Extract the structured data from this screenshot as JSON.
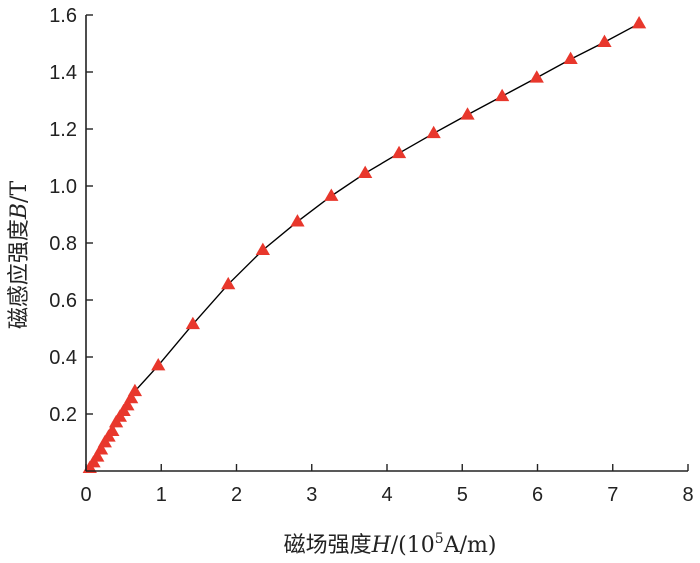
{
  "chart_data": {
    "type": "line",
    "title": "",
    "xlabel": {
      "prefix": "磁场强度",
      "var": "H",
      "unit_open": "/(10",
      "unit_exp": "5",
      "unit_close": "A/m)"
    },
    "ylabel": {
      "prefix": "磁感应强度",
      "var": "B",
      "unit": "/T"
    },
    "xlim": [
      0,
      8
    ],
    "ylim": [
      0,
      1.6
    ],
    "xticks": [
      "0",
      "1",
      "2",
      "3",
      "4",
      "5",
      "6",
      "7",
      "8"
    ],
    "yticks": [
      "0.2",
      "0.4",
      "0.6",
      "0.8",
      "1.0",
      "1.2",
      "1.4",
      "1.6"
    ],
    "grid": false,
    "marker": "triangle",
    "series": [
      {
        "color": "#e8372c",
        "line_color": "#000000",
        "x": [
          0.05,
          0.1,
          0.15,
          0.2,
          0.25,
          0.3,
          0.35,
          0.4,
          0.45,
          0.5,
          0.55,
          0.6,
          0.65,
          0.96,
          1.42,
          1.89,
          2.35,
          2.81,
          3.26,
          3.71,
          4.16,
          4.62,
          5.07,
          5.53,
          5.99,
          6.44,
          6.89,
          7.35
        ],
        "y": [
          0.01,
          0.03,
          0.05,
          0.075,
          0.1,
          0.12,
          0.14,
          0.17,
          0.19,
          0.21,
          0.23,
          0.255,
          0.28,
          0.37,
          0.515,
          0.655,
          0.775,
          0.875,
          0.965,
          1.045,
          1.115,
          1.185,
          1.25,
          1.315,
          1.38,
          1.445,
          1.505,
          1.57
        ]
      }
    ]
  }
}
